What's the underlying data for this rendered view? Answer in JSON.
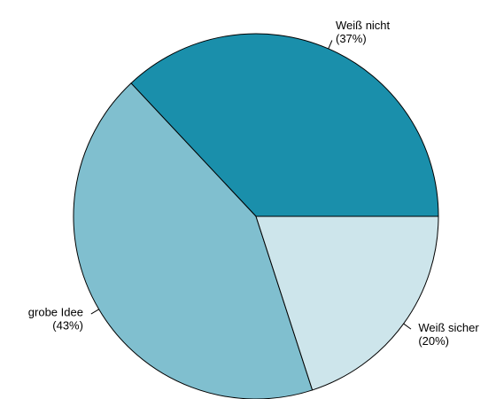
{
  "chart_data": {
    "type": "pie",
    "title": "",
    "slices": [
      {
        "label": "Weiß nicht",
        "percent_label": "(37%)",
        "value": 37,
        "color": "#1a8fab"
      },
      {
        "label": "grobe Idee",
        "percent_label": "(43%)",
        "value": 43,
        "color": "#80bfcf"
      },
      {
        "label": "Weiß sicher",
        "percent_label": "(20%)",
        "value": 20,
        "color": "#cde5eb"
      }
    ]
  }
}
